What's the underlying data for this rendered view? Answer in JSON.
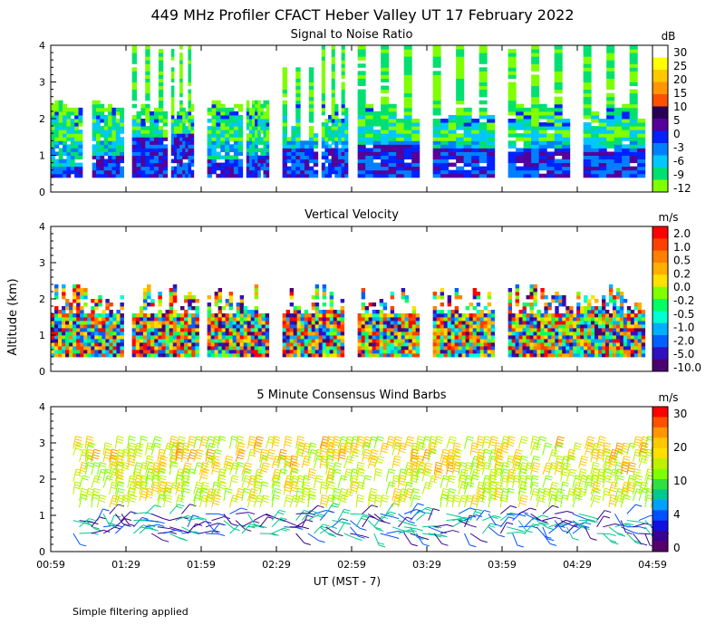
{
  "title": "449 MHz Profiler CFACT Heber Valley UT 17 February 2022",
  "y_axis_label": "Altitude (km)",
  "x_axis_label": "UT  (MST - 7)",
  "footnote": "Simple filtering applied",
  "chart_data": [
    {
      "type": "heatmap",
      "title": "Signal to Noise Ratio",
      "ylim": [
        0,
        4
      ],
      "y_ticks": [
        "0",
        "1",
        "2",
        "3",
        "4"
      ],
      "x_ticks": [
        "00:59",
        "01:29",
        "01:59",
        "02:29",
        "02:59",
        "03:29",
        "03:59",
        "04:29",
        "04:59"
      ],
      "colorbar": {
        "unit": "dB",
        "labels": [
          "30",
          "25",
          "20",
          "15",
          "10",
          "5",
          "0",
          "-3",
          "-6",
          "-9",
          "-12"
        ],
        "colors": [
          "#ffffff",
          "#ffff00",
          "#ffc800",
          "#ff9600",
          "#ff5000",
          "#2a0055",
          "#55009a",
          "#0022ff",
          "#0080ff",
          "#00c8ff",
          "#00e070",
          "#80ff00"
        ]
      },
      "columns": [
        {
          "x0": 0,
          "x1": 0.42,
          "vt_top": 2.45,
          "mix_top": 0.7
        },
        {
          "x0": 0.55,
          "x1": 0.97,
          "vt_top": 2.45,
          "mix_top": 0.9
        },
        {
          "x0": 1.08,
          "x1": 1.55,
          "vt_top": 4.0,
          "mix_top": 1.5
        },
        {
          "x0": 1.6,
          "x1": 1.9,
          "vt_top": 4.0,
          "mix_top": 1.6
        },
        {
          "x0": 2.08,
          "x1": 2.55,
          "vt_top": 2.45,
          "mix_top": 0.8
        },
        {
          "x0": 2.6,
          "x1": 2.9,
          "vt_top": 2.45,
          "mix_top": 0.9
        },
        {
          "x0": 3.08,
          "x1": 3.55,
          "vt_top": 3.4,
          "mix_top": 1.2
        },
        {
          "x0": 3.6,
          "x1": 3.95,
          "vt_top": 4.0,
          "mix_top": 1.2
        },
        {
          "x0": 4.08,
          "x1": 4.9,
          "vt_top": 4.0,
          "mix_top": 1.3
        },
        {
          "x0": 5.08,
          "x1": 5.9,
          "vt_top": 4.0,
          "mix_top": 1.2
        },
        {
          "x0": 6.08,
          "x1": 6.9,
          "vt_top": 4.0,
          "mix_top": 1.2
        },
        {
          "x0": 7.08,
          "x1": 7.9,
          "vt_top": 4.0,
          "mix_top": 1.1
        }
      ],
      "x_range": [
        0,
        8
      ]
    },
    {
      "type": "heatmap",
      "title": "Vertical Velocity",
      "ylim": [
        0,
        4
      ],
      "y_ticks": [
        "0",
        "1",
        "2",
        "3",
        "4"
      ],
      "x_ticks": [
        "00:59",
        "01:29",
        "01:59",
        "02:29",
        "02:59",
        "03:29",
        "03:59",
        "04:29",
        "04:59"
      ],
      "colorbar": {
        "unit": "m/s",
        "labels": [
          "2.0",
          "1.0",
          "0.5",
          "0.2",
          "0.0",
          "-0.2",
          "-0.5",
          "-1.0",
          "-2.0",
          "-5.0",
          "-10.0"
        ],
        "colors": [
          "#ff0000",
          "#ff4000",
          "#ff8000",
          "#ffb000",
          "#ffe000",
          "#80ff00",
          "#00ff60",
          "#00ffd0",
          "#00b0ff",
          "#0060ff",
          "#3010c0",
          "#4a0070"
        ]
      },
      "columns": [
        {
          "x0": 0,
          "x1": 0.97,
          "vt_top": 2.35
        },
        {
          "x0": 1.08,
          "x1": 1.97,
          "vt_top": 2.45
        },
        {
          "x0": 2.08,
          "x1": 2.9,
          "vt_top": 2.35
        },
        {
          "x0": 3.08,
          "x1": 3.9,
          "vt_top": 2.7
        },
        {
          "x0": 4.08,
          "x1": 4.9,
          "vt_top": 2.35
        },
        {
          "x0": 5.08,
          "x1": 5.9,
          "vt_top": 2.3
        },
        {
          "x0": 6.08,
          "x1": 7.9,
          "vt_top": 2.4
        }
      ],
      "x_range": [
        0,
        8
      ]
    },
    {
      "type": "scatter",
      "title": "5 Minute Consensus Wind Barbs",
      "ylim": [
        0,
        4
      ],
      "y_ticks": [
        "0",
        "1",
        "2",
        "3",
        "4"
      ],
      "x_ticks": [
        "00:59",
        "01:29",
        "01:59",
        "02:29",
        "02:59",
        "03:29",
        "03:59",
        "04:29",
        "04:59"
      ],
      "colorbar": {
        "unit": "m/s",
        "labels": [
          "30",
          "20",
          "10",
          "4",
          "0"
        ],
        "colors": [
          "#ff0000",
          "#ff5000",
          "#ff9600",
          "#ffc800",
          "#ffe000",
          "#c0f000",
          "#80ff00",
          "#30e040",
          "#00c890",
          "#00a0ff",
          "#0050ff",
          "#1010e0",
          "#3a0090",
          "#55006a"
        ]
      },
      "x_range": [
        0,
        8
      ]
    }
  ]
}
